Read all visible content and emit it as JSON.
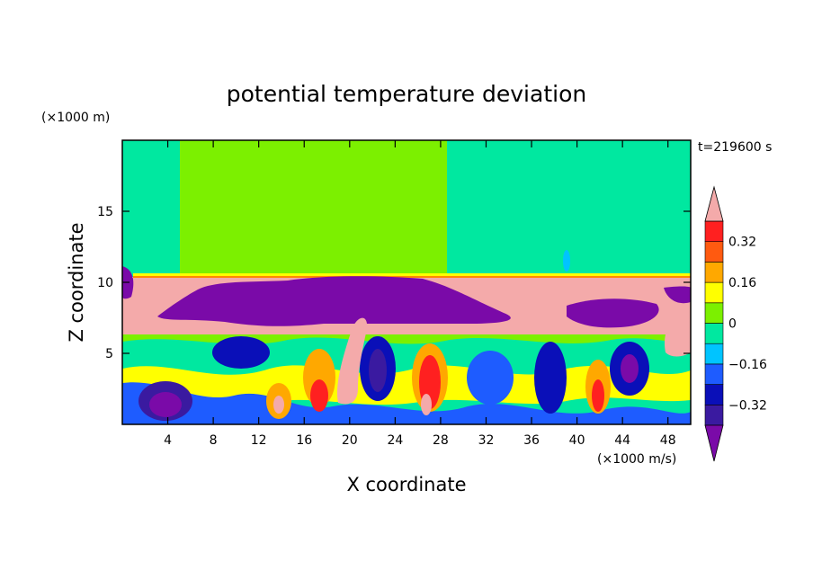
{
  "chart_data": {
    "type": "heatmap",
    "title": "potential temperature deviation",
    "xlabel": "X coordinate",
    "ylabel": "Z coordinate",
    "x_unit": "(×1000 m/s)",
    "y_unit": "(×1000 m)",
    "time_label": "t=219600 s",
    "xlim": [
      0,
      50
    ],
    "ylim": [
      0,
      20
    ],
    "x_ticks": [
      4,
      8,
      12,
      16,
      20,
      24,
      28,
      32,
      36,
      40,
      44,
      48
    ],
    "y_ticks": [
      5,
      10,
      15
    ],
    "colorbar": {
      "levels": [
        -0.4,
        -0.32,
        -0.24,
        -0.16,
        -0.08,
        0,
        0.08,
        0.16,
        0.24,
        0.32,
        0.4
      ],
      "tick_labels": [
        "0.32",
        "0.16",
        "0",
        "−0.16",
        "−0.32"
      ],
      "tick_values": [
        0.32,
        0.16,
        0,
        -0.16,
        -0.32
      ],
      "colors": [
        "#7a0aa8",
        "#3a1aa0",
        "#0a0fb8",
        "#1e5cff",
        "#00c4ff",
        "#00e8a0",
        "#7cf000",
        "#ffff00",
        "#ffa800",
        "#ff5a10",
        "#ff2020",
        "#f4aaaa"
      ]
    }
  }
}
